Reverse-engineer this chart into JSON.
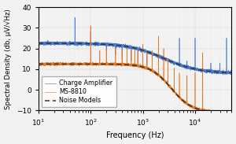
{
  "title": "",
  "xlabel": "Frequency (Hz)",
  "ylabel": "Spectral Density (db, μV/√Hz)",
  "xlim": [
    10,
    50000
  ],
  "ylim": [
    -10,
    40
  ],
  "yticks": [
    -10,
    0,
    10,
    20,
    30,
    40
  ],
  "figsize": [
    3.0,
    1.83
  ],
  "dpi": 100,
  "blue_color": "#4878cf",
  "orange_color": "#e87820",
  "noise_model_color": "#333333",
  "bg_color": "#f2f2f2",
  "legend_labels": [
    "Charge Amplifier",
    "MS-8810",
    "Noise Models"
  ],
  "blue_start_db": 22.5,
  "blue_end_db": 8.0,
  "blue_knee_hz": 2500,
  "blue_slope_steepness": 3.0,
  "orange_flat_db": 12.5,
  "orange_drop_db": -11.0,
  "orange_knee_hz": 3500,
  "orange_slope_steepness": 5.0,
  "noise_model_dashed_above_hz": 200,
  "spike_freqs_blue": [
    50,
    100,
    120,
    150,
    200,
    300,
    400,
    500,
    600,
    700,
    800,
    1000,
    1200,
    1500,
    2000,
    3000,
    4000,
    5000,
    7000,
    10000,
    14000,
    20000,
    30000,
    40000
  ],
  "spike_heights_blue": [
    35,
    28,
    23,
    22,
    19,
    17,
    15,
    15,
    14,
    13,
    13,
    12,
    12,
    11,
    12,
    12,
    12,
    25,
    14,
    25,
    14,
    13,
    13,
    25
  ],
  "spike_freqs_orange": [
    100,
    150,
    200,
    300,
    400,
    500,
    600,
    700,
    800,
    1000,
    1200,
    1500,
    2000,
    2500,
    3000,
    4000,
    5000,
    7000,
    10000,
    14000
  ],
  "spike_heights_orange": [
    31,
    16,
    18,
    19,
    18,
    19,
    18,
    19,
    17,
    22,
    18,
    19,
    26,
    20,
    15,
    8,
    4,
    3,
    7,
    18
  ]
}
